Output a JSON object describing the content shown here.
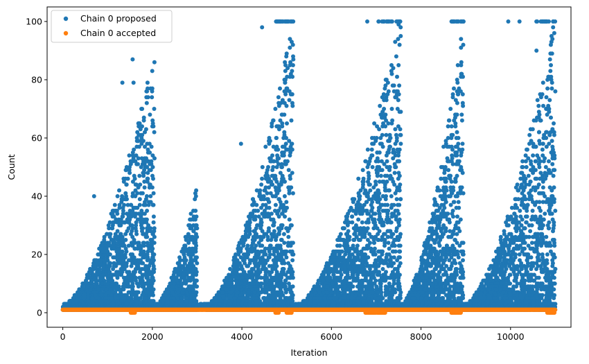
{
  "chart_data": {
    "type": "scatter",
    "xlabel": "Iteration",
    "ylabel": "Count",
    "xlim": [
      -350,
      11350
    ],
    "ylim": [
      -5,
      105
    ],
    "xticks": [
      0,
      2000,
      4000,
      6000,
      8000,
      10000
    ],
    "yticks": [
      0,
      20,
      40,
      60,
      80,
      100
    ],
    "grid": false,
    "legend_position": "top-left",
    "series": [
      {
        "name": "Chain 0 proposed",
        "color": "#1f77b4",
        "description_of_bursts": "blue points cluster into bursts growing from ~1 to up to ~100",
        "bursts": [
          {
            "start": 0,
            "end": 2050,
            "peak": 87
          },
          {
            "start": 2050,
            "end": 3000,
            "peak": 41
          },
          {
            "start": 3200,
            "end": 5150,
            "peak": 100
          },
          {
            "start": 5200,
            "end": 7550,
            "peak": 100
          },
          {
            "start": 7550,
            "end": 8950,
            "peak": 100
          },
          {
            "start": 8950,
            "end": 11000,
            "peak": 100
          }
        ],
        "notable_points": [
          {
            "x": 700,
            "y": 40
          },
          {
            "x": 1330,
            "y": 79
          },
          {
            "x": 1560,
            "y": 87
          },
          {
            "x": 1580,
            "y": 79
          },
          {
            "x": 1880,
            "y": 76
          },
          {
            "x": 1990,
            "y": 74
          },
          {
            "x": 2960,
            "y": 41
          },
          {
            "x": 3980,
            "y": 58
          },
          {
            "x": 4450,
            "y": 98
          },
          {
            "x": 4830,
            "y": 100
          },
          {
            "x": 5100,
            "y": 100
          },
          {
            "x": 5120,
            "y": 83
          },
          {
            "x": 6800,
            "y": 100
          },
          {
            "x": 7050,
            "y": 100
          },
          {
            "x": 7480,
            "y": 100
          },
          {
            "x": 8700,
            "y": 100
          },
          {
            "x": 8900,
            "y": 100
          },
          {
            "x": 9950,
            "y": 100
          },
          {
            "x": 10200,
            "y": 100
          },
          {
            "x": 10580,
            "y": 90
          },
          {
            "x": 10950,
            "y": 100
          }
        ]
      },
      {
        "name": "Chain 0 accepted",
        "color": "#ff7f0e",
        "baseline_value": 1,
        "x_range": [
          0,
          11000
        ],
        "dips_to_zero_ranges": [
          [
            1520,
            1620
          ],
          [
            4750,
            4820
          ],
          [
            5000,
            5120
          ],
          [
            6750,
            7200
          ],
          [
            8680,
            8900
          ],
          [
            10820,
            11000
          ]
        ]
      }
    ]
  }
}
